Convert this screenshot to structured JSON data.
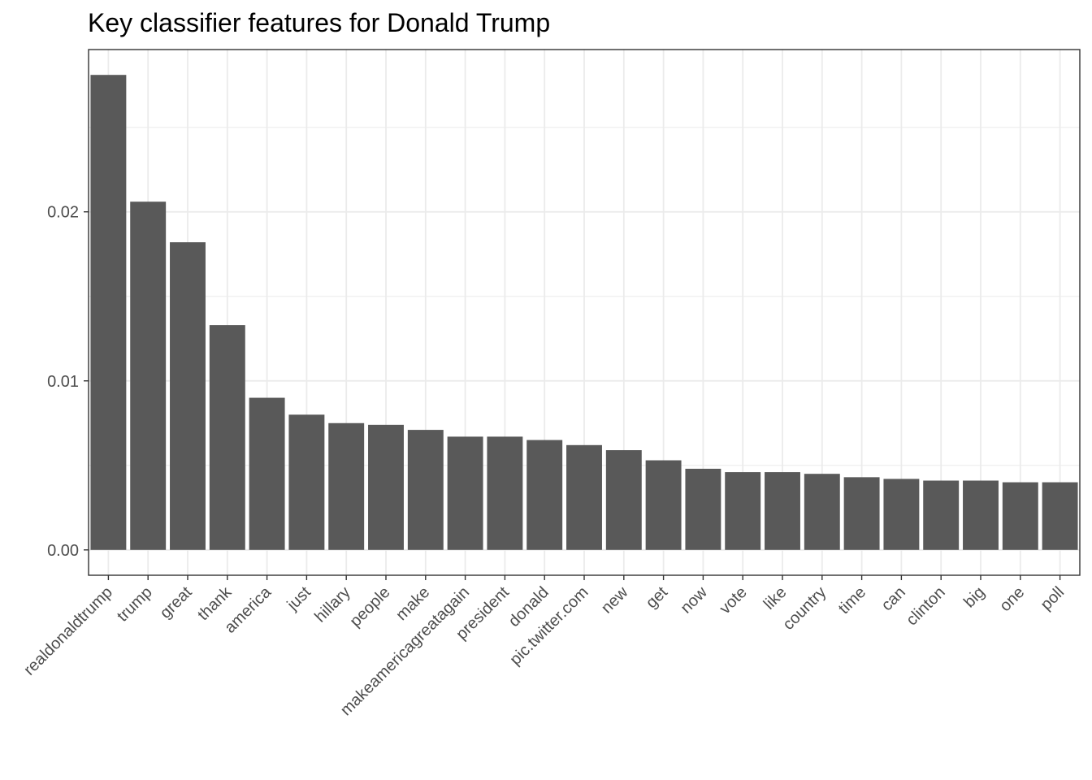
{
  "chart_data": {
    "type": "bar",
    "title": "Key classifier features for Donald Trump",
    "xlabel": "",
    "ylabel": "",
    "categories": [
      "realdonaldtrump",
      "trump",
      "great",
      "thank",
      "america",
      "just",
      "hillary",
      "people",
      "make",
      "makeamericagreatagain",
      "president",
      "donald",
      "pic.twitter.com",
      "new",
      "get",
      "now",
      "vote",
      "like",
      "country",
      "time",
      "can",
      "clinton",
      "big",
      "one",
      "poll"
    ],
    "values": [
      0.0281,
      0.0206,
      0.0182,
      0.0133,
      0.009,
      0.008,
      0.0075,
      0.0074,
      0.0071,
      0.0067,
      0.0067,
      0.0065,
      0.0062,
      0.0059,
      0.0053,
      0.0048,
      0.0046,
      0.0046,
      0.0045,
      0.0043,
      0.0042,
      0.0041,
      0.0041,
      0.004,
      0.004
    ],
    "ylim": [
      -0.0015,
      0.0296
    ],
    "yticks": [
      0,
      0.01,
      0.02
    ],
    "ytick_labels": [
      "0.00",
      "0.01",
      "0.02"
    ],
    "grid": true,
    "bar_color": "#595959",
    "grid_color": "#ebebeb",
    "panel_border_color": "#333333"
  }
}
